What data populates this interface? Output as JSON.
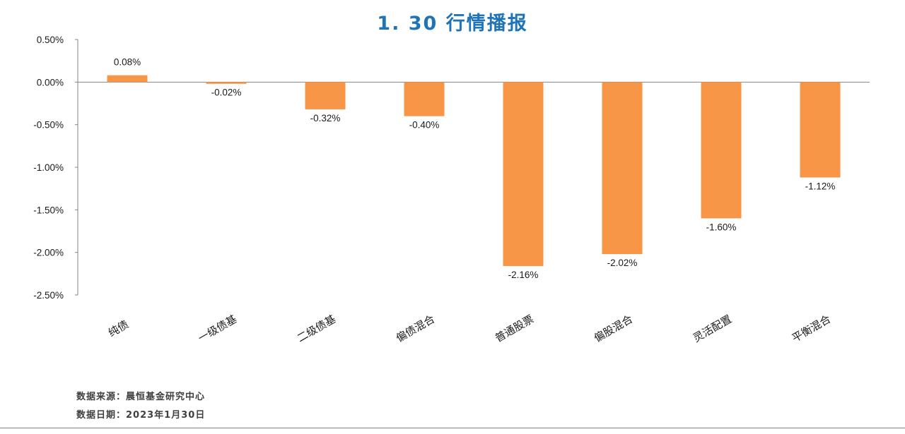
{
  "colors": {
    "title": "#1f74b8",
    "bar": "#f79646",
    "axis": "#868686"
  },
  "chart_data": {
    "type": "bar",
    "title": "1. 30 行情播报",
    "xlabel": "",
    "ylabel": "",
    "categories": [
      "纯债",
      "一级债基",
      "二级债基",
      "偏债混合",
      "普通股票",
      "偏股混合",
      "灵活配置",
      "平衡混合"
    ],
    "values": [
      0.08,
      -0.02,
      -0.32,
      -0.4,
      -2.16,
      -2.02,
      -1.6,
      -1.12
    ],
    "value_labels": [
      "0.08%",
      "-0.02%",
      "-0.32%",
      "-0.40%",
      "-2.16%",
      "-2.02%",
      "-1.60%",
      "-1.12%"
    ],
    "ylim": [
      -2.5,
      0.5
    ],
    "yticks": [
      0.5,
      0.0,
      -0.5,
      -1.0,
      -1.5,
      -2.0,
      -2.5
    ],
    "ytick_labels": [
      "0.50%",
      "0.00%",
      "-0.50%",
      "-1.00%",
      "-1.50%",
      "-2.00%",
      "-2.50%"
    ],
    "grid": false,
    "legend": "none"
  },
  "footer": {
    "source": "数据来源：晨恒基金研究中心",
    "date": "数据日期：2023年1月30日"
  }
}
